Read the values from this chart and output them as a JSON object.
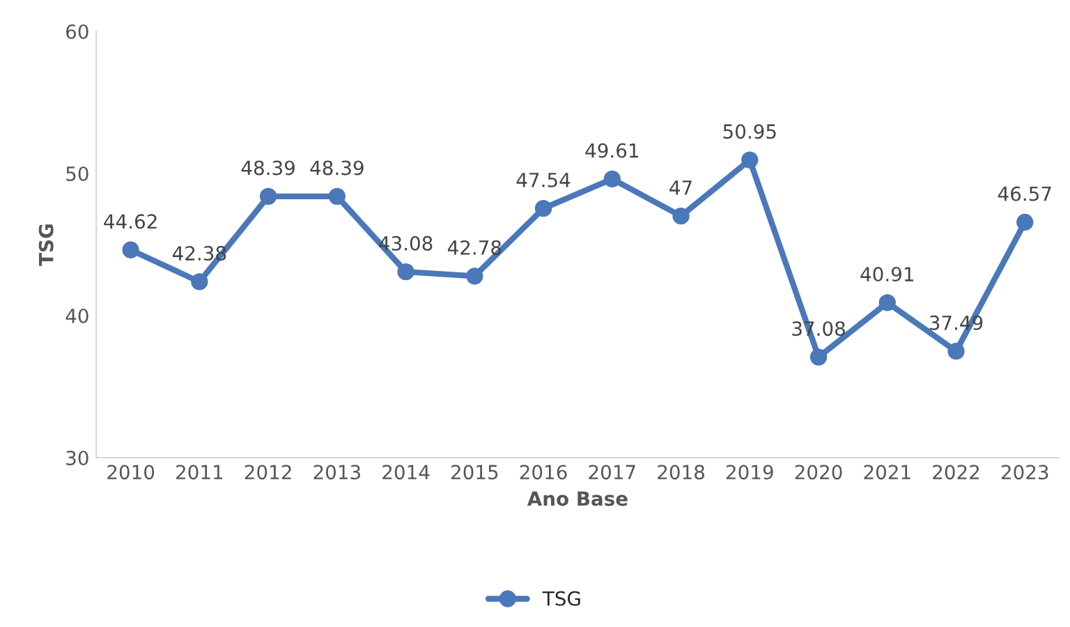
{
  "chart_data": {
    "type": "line",
    "xlabel": "Ano Base",
    "ylabel": "TSG",
    "categories": [
      "2010",
      "2011",
      "2012",
      "2013",
      "2014",
      "2015",
      "2016",
      "2017",
      "2018",
      "2019",
      "2020",
      "2021",
      "2022",
      "2023"
    ],
    "series": [
      {
        "name": "TSG",
        "color": "#4a78b8",
        "values": [
          44.62,
          42.38,
          48.39,
          48.39,
          43.08,
          42.78,
          47.54,
          49.61,
          47,
          50.95,
          37.08,
          40.91,
          37.49,
          46.57
        ]
      }
    ],
    "ylim": [
      30,
      60
    ],
    "yticks": [
      30,
      40,
      50,
      60
    ],
    "data_labels": true,
    "legend": "bottom",
    "marker": "circle",
    "line_style": "solid",
    "grid": false
  }
}
